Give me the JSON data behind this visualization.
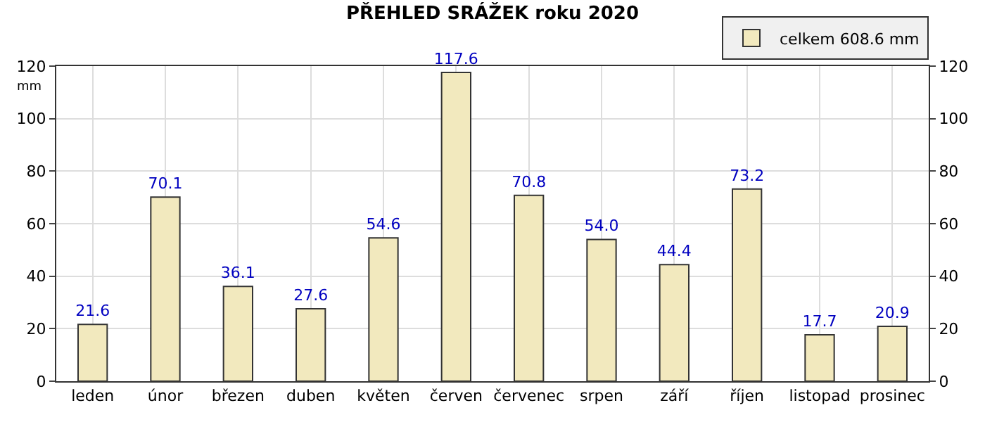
{
  "chart_data": {
    "type": "bar",
    "title": "PŘEHLED SRÁŽEK roku 2020",
    "ylabel": "mm",
    "categories": [
      "leden",
      "únor",
      "březen",
      "duben",
      "květen",
      "červen",
      "červenec",
      "srpen",
      "září",
      "říjen",
      "listopad",
      "prosinec"
    ],
    "series": [
      {
        "name": "celkem 608.6 mm",
        "color": "#f2e9be",
        "values": [
          21.6,
          70.1,
          36.1,
          27.6,
          54.6,
          117.6,
          70.8,
          54.0,
          44.4,
          73.2,
          17.7,
          20.9
        ],
        "value_labels": [
          "21.6",
          "70.1",
          "36.1",
          "27.6",
          "54.6",
          "117.6",
          "70.8",
          "54.0",
          "44.4",
          "73.2",
          "17.7",
          "20.9"
        ]
      }
    ],
    "ylim": [
      0,
      120
    ],
    "yticks": [
      0,
      20,
      40,
      60,
      80,
      100,
      120
    ],
    "y2lim": [
      0,
      120
    ],
    "y2ticks": [
      0,
      20,
      40,
      60,
      80,
      100,
      120
    ],
    "grid": true,
    "legend": "top right"
  }
}
